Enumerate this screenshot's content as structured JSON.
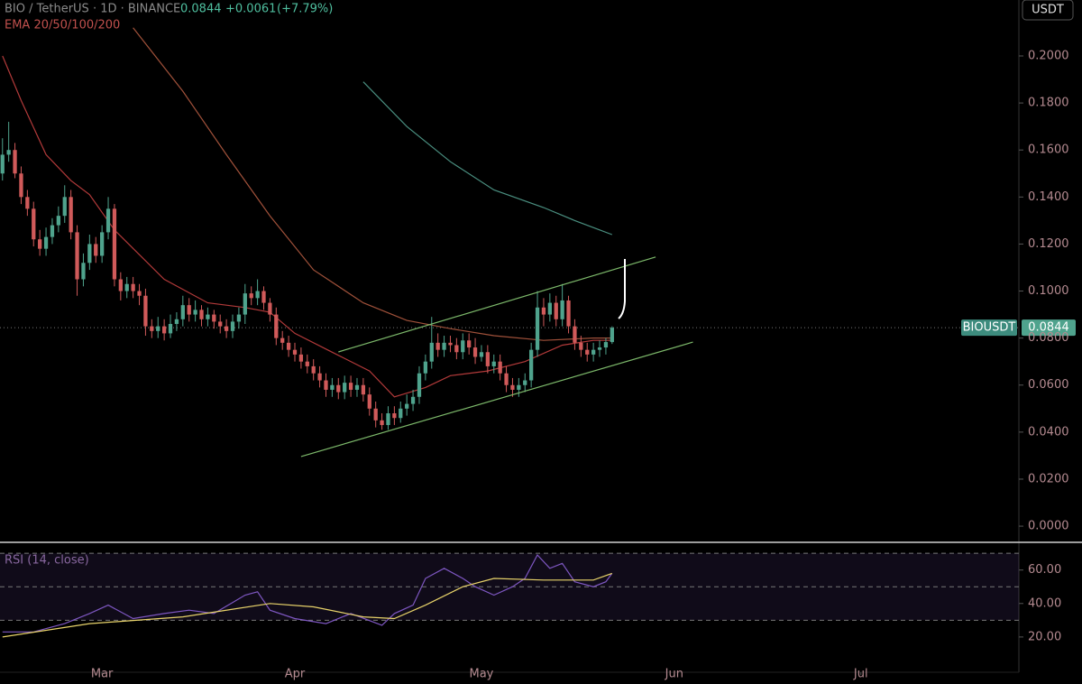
{
  "chart_data": [
    {
      "type": "candlestick",
      "title": "BIO / TetherUS · 1D · BINANCE",
      "last_price": 0.0844,
      "change": {
        "value": 0.0061,
        "label": "+0.0061"
      },
      "change_pct": {
        "value": 7.79,
        "label": "(+7.79%)"
      },
      "indicator": "EMA 20/50/100/200",
      "currency": "USDT",
      "symbol": "BIOUSDT",
      "up_color": "#4fa38d",
      "down_color": "#d05a5a",
      "xlim": [
        -16.4,
        147.4
      ],
      "ylim": [
        -0.0065,
        0.2238
      ],
      "yticks": [
        {
          "value": 0,
          "label": "0.0000"
        },
        {
          "value": 0.02,
          "label": "0.0200"
        },
        {
          "value": 0.04,
          "label": "0.0400"
        },
        {
          "value": 0.06,
          "label": "0.0600"
        },
        {
          "value": 0.08,
          "label": "0.0800"
        },
        {
          "value": 0.1,
          "label": "0.1000"
        },
        {
          "value": 0.12,
          "label": "0.1200"
        },
        {
          "value": 0.14,
          "label": "0.1400"
        },
        {
          "value": 0.16,
          "label": "0.1600"
        },
        {
          "value": 0.18,
          "label": "0.1800"
        },
        {
          "value": 0.2,
          "label": "0.2000"
        }
      ],
      "x": [
        -16,
        -15,
        -14,
        -13,
        -12,
        -11,
        -10,
        -9,
        -8,
        -7,
        -6,
        -5,
        -4,
        -3,
        -2,
        -1,
        0,
        1,
        2,
        3,
        4,
        5,
        6,
        7,
        8,
        9,
        10,
        11,
        12,
        13,
        14,
        15,
        16,
        17,
        18,
        19,
        20,
        21,
        22,
        23,
        24,
        25,
        26,
        27,
        28,
        29,
        30,
        31,
        32,
        33,
        34,
        35,
        36,
        37,
        38,
        39,
        40,
        41,
        42,
        43,
        44,
        45,
        46,
        47,
        48,
        49,
        50,
        51,
        52,
        53,
        54,
        55,
        56,
        57,
        58,
        59,
        60,
        61,
        62,
        63,
        64,
        65,
        66,
        67,
        68,
        69,
        70,
        71,
        72,
        73,
        74,
        75,
        76,
        77,
        78,
        79,
        80,
        81,
        82
      ],
      "open": [
        0.15,
        0.158,
        0.16,
        0.15,
        0.14,
        0.135,
        0.122,
        0.118,
        0.123,
        0.128,
        0.132,
        0.14,
        0.125,
        0.105,
        0.112,
        0.12,
        0.115,
        0.125,
        0.135,
        0.105,
        0.1,
        0.103,
        0.1,
        0.098,
        0.085,
        0.083,
        0.085,
        0.082,
        0.086,
        0.088,
        0.094,
        0.09,
        0.092,
        0.088,
        0.09,
        0.087,
        0.085,
        0.083,
        0.087,
        0.09,
        0.099,
        0.097,
        0.1,
        0.095,
        0.09,
        0.08,
        0.078,
        0.075,
        0.073,
        0.07,
        0.068,
        0.065,
        0.062,
        0.058,
        0.06,
        0.057,
        0.061,
        0.058,
        0.06,
        0.056,
        0.05,
        0.045,
        0.043,
        0.048,
        0.046,
        0.05,
        0.052,
        0.055,
        0.065,
        0.07,
        0.078,
        0.075,
        0.078,
        0.077,
        0.074,
        0.079,
        0.076,
        0.072,
        0.074,
        0.068,
        0.07,
        0.065,
        0.06,
        0.058,
        0.06,
        0.062,
        0.075,
        0.093,
        0.09,
        0.095,
        0.088,
        0.096,
        0.085,
        0.078,
        0.075,
        0.073,
        0.075,
        0.076,
        0.0783
      ],
      "high": [
        0.165,
        0.172,
        0.163,
        0.153,
        0.143,
        0.138,
        0.126,
        0.127,
        0.131,
        0.136,
        0.145,
        0.143,
        0.128,
        0.116,
        0.124,
        0.123,
        0.128,
        0.14,
        0.137,
        0.108,
        0.106,
        0.106,
        0.103,
        0.101,
        0.088,
        0.089,
        0.088,
        0.09,
        0.091,
        0.098,
        0.097,
        0.096,
        0.094,
        0.093,
        0.092,
        0.09,
        0.088,
        0.09,
        0.093,
        0.103,
        0.102,
        0.105,
        0.102,
        0.097,
        0.093,
        0.083,
        0.081,
        0.078,
        0.076,
        0.073,
        0.071,
        0.068,
        0.065,
        0.063,
        0.063,
        0.064,
        0.064,
        0.063,
        0.063,
        0.059,
        0.053,
        0.048,
        0.051,
        0.051,
        0.053,
        0.056,
        0.058,
        0.068,
        0.073,
        0.089,
        0.082,
        0.081,
        0.081,
        0.08,
        0.082,
        0.082,
        0.08,
        0.077,
        0.077,
        0.073,
        0.073,
        0.068,
        0.063,
        0.063,
        0.065,
        0.078,
        0.1,
        0.097,
        0.099,
        0.098,
        0.103,
        0.098,
        0.088,
        0.081,
        0.078,
        0.078,
        0.079,
        0.08,
        0.085
      ],
      "low": [
        0.147,
        0.155,
        0.148,
        0.137,
        0.132,
        0.119,
        0.115,
        0.115,
        0.12,
        0.125,
        0.129,
        0.122,
        0.098,
        0.102,
        0.109,
        0.112,
        0.112,
        0.122,
        0.102,
        0.096,
        0.097,
        0.097,
        0.094,
        0.081,
        0.08,
        0.08,
        0.079,
        0.08,
        0.083,
        0.085,
        0.087,
        0.087,
        0.085,
        0.085,
        0.084,
        0.082,
        0.08,
        0.08,
        0.084,
        0.086,
        0.094,
        0.094,
        0.092,
        0.087,
        0.077,
        0.075,
        0.072,
        0.07,
        0.067,
        0.065,
        0.062,
        0.059,
        0.055,
        0.055,
        0.054,
        0.054,
        0.055,
        0.055,
        0.053,
        0.047,
        0.042,
        0.041,
        0.041,
        0.043,
        0.044,
        0.047,
        0.049,
        0.052,
        0.062,
        0.067,
        0.072,
        0.072,
        0.074,
        0.071,
        0.071,
        0.073,
        0.069,
        0.07,
        0.065,
        0.065,
        0.062,
        0.057,
        0.055,
        0.055,
        0.057,
        0.059,
        0.072,
        0.085,
        0.087,
        0.085,
        0.085,
        0.082,
        0.075,
        0.072,
        0.07,
        0.07,
        0.072,
        0.073,
        0.0775
      ],
      "close": [
        0.158,
        0.16,
        0.15,
        0.14,
        0.135,
        0.122,
        0.118,
        0.123,
        0.128,
        0.132,
        0.14,
        0.125,
        0.105,
        0.112,
        0.12,
        0.115,
        0.125,
        0.135,
        0.105,
        0.1,
        0.103,
        0.1,
        0.098,
        0.085,
        0.083,
        0.085,
        0.082,
        0.086,
        0.088,
        0.094,
        0.09,
        0.092,
        0.088,
        0.09,
        0.087,
        0.085,
        0.083,
        0.087,
        0.09,
        0.099,
        0.097,
        0.1,
        0.095,
        0.09,
        0.08,
        0.078,
        0.075,
        0.073,
        0.07,
        0.068,
        0.065,
        0.062,
        0.058,
        0.06,
        0.057,
        0.061,
        0.058,
        0.06,
        0.056,
        0.05,
        0.045,
        0.043,
        0.048,
        0.046,
        0.05,
        0.052,
        0.055,
        0.065,
        0.07,
        0.078,
        0.075,
        0.078,
        0.077,
        0.074,
        0.079,
        0.076,
        0.072,
        0.074,
        0.068,
        0.07,
        0.065,
        0.06,
        0.058,
        0.06,
        0.062,
        0.075,
        0.093,
        0.09,
        0.095,
        0.088,
        0.096,
        0.085,
        0.078,
        0.075,
        0.073,
        0.075,
        0.076,
        0.0783,
        0.0844
      ],
      "series": [
        {
          "color": "#b23a3a",
          "x": [
            -16,
            -13,
            -9,
            -5,
            -2,
            2,
            10,
            17,
            23,
            27,
            31,
            37,
            43,
            47,
            52,
            56,
            62,
            68,
            74,
            79,
            82
          ],
          "values": [
            0.2,
            0.181,
            0.158,
            0.147,
            0.141,
            0.126,
            0.105,
            0.095,
            0.093,
            0.091,
            0.082,
            0.074,
            0.066,
            0.055,
            0.059,
            0.064,
            0.066,
            0.07,
            0.077,
            0.079,
            0.079
          ]
        },
        {
          "color": "#a0513a",
          "x": [
            5,
            13,
            20,
            27,
            34,
            42,
            49,
            56,
            63,
            71,
            79,
            82
          ],
          "values": [
            0.212,
            0.185,
            0.158,
            0.132,
            0.109,
            0.095,
            0.0875,
            0.084,
            0.081,
            0.079,
            0.08,
            0.08
          ]
        },
        {
          "color": "#4a8f80",
          "x": [
            42,
            49,
            56,
            63,
            71,
            76,
            82
          ],
          "values": [
            0.189,
            0.17,
            0.155,
            0.143,
            0.1355,
            0.13,
            0.124
          ]
        }
      ],
      "trendlines": [
        {
          "color": "#7cb86a",
          "x": [
            38,
            89
          ],
          "values": [
            0.0741,
            0.1145
          ]
        },
        {
          "color": "#7cb86a",
          "x": [
            32,
            95
          ],
          "values": [
            0.0296,
            0.0783
          ]
        }
      ]
    },
    {
      "type": "line",
      "title": "RSI (14, close)",
      "xlim": [
        -16.4,
        147.4
      ],
      "ylim": [
        0,
        76
      ],
      "yticks": [
        {
          "value": 20,
          "label": "20.00"
        },
        {
          "value": 40,
          "label": "40.00"
        },
        {
          "value": 60,
          "label": "60.00"
        }
      ],
      "xticks": [
        {
          "value": 0,
          "label": "Mar"
        },
        {
          "value": 31,
          "label": "Apr"
        },
        {
          "value": 61,
          "label": "May"
        },
        {
          "value": 92,
          "label": "Jun"
        },
        {
          "value": 122,
          "label": "Jul"
        }
      ],
      "levels": [
        70,
        50,
        30
      ],
      "series": [
        {
          "color": "#7e57c2",
          "x": [
            -16,
            -11,
            -6,
            -2,
            1,
            5,
            10,
            14,
            18,
            23,
            25,
            27,
            31,
            36,
            40,
            45,
            47,
            50,
            52,
            55,
            58,
            60,
            63,
            66,
            68,
            70,
            72,
            74,
            76,
            79,
            81,
            82
          ],
          "values": [
            23,
            23,
            28,
            34,
            39,
            31,
            34,
            36,
            34,
            45,
            47,
            36,
            31,
            28,
            34,
            27,
            34,
            39,
            55,
            61,
            55,
            50,
            45,
            50,
            55,
            69,
            61,
            64,
            53,
            50,
            53,
            58
          ]
        },
        {
          "color": "#e8d36a",
          "x": [
            -16,
            -2,
            13,
            27,
            34,
            42,
            47,
            52,
            58,
            63,
            71,
            79,
            82
          ],
          "values": [
            20,
            28,
            32,
            40,
            38,
            32,
            31,
            39,
            50,
            55,
            54,
            54,
            58
          ]
        }
      ]
    }
  ]
}
